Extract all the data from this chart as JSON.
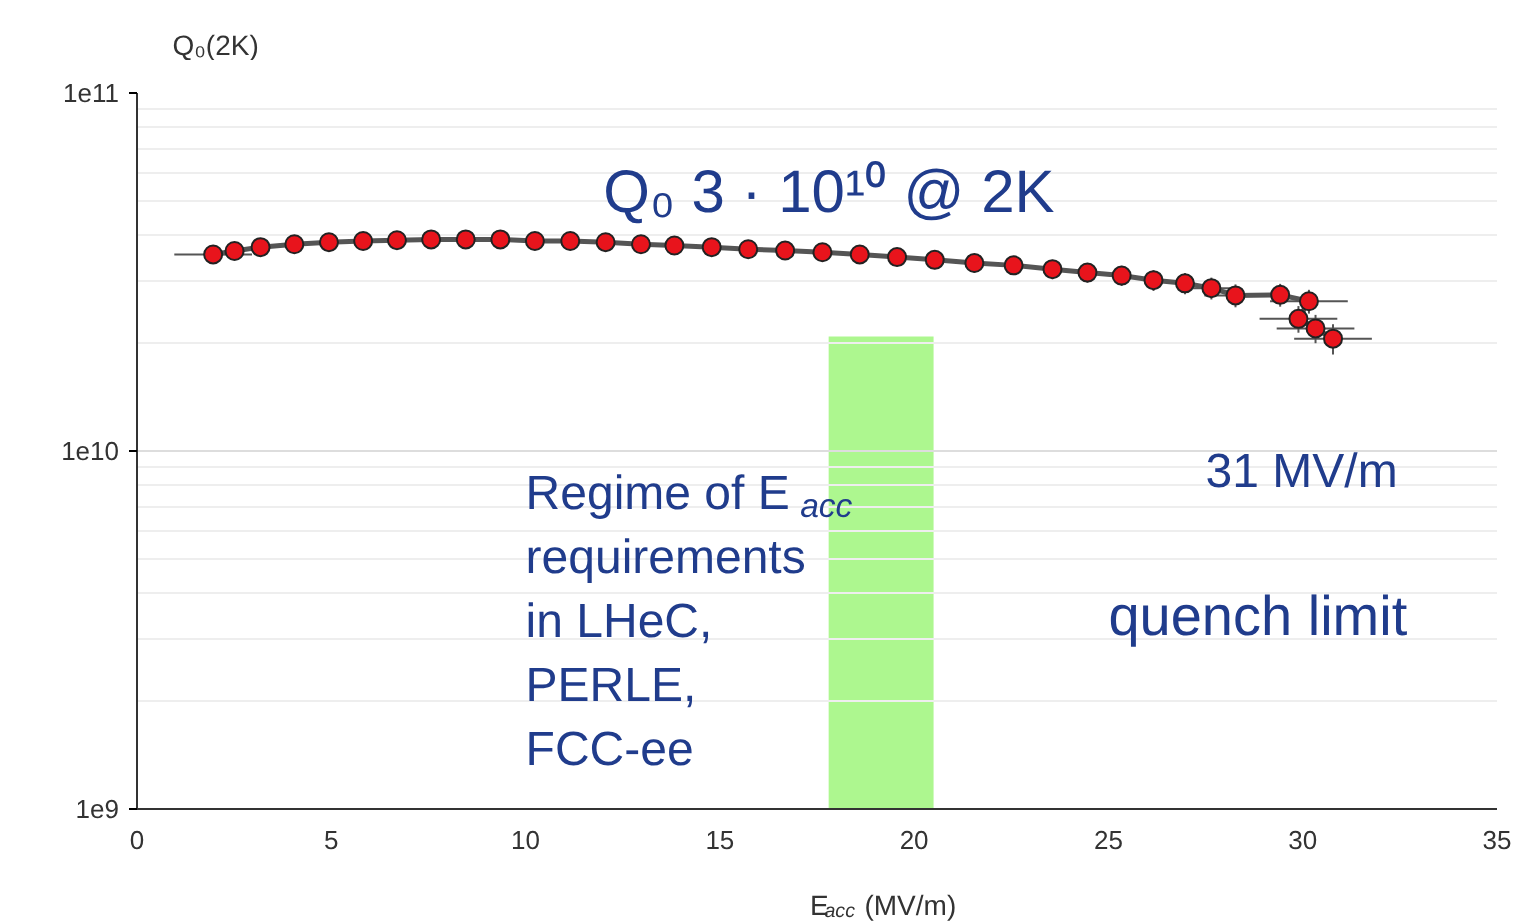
{
  "chart_data": {
    "type": "line",
    "marker": "circle",
    "grid": "y",
    "log": "y",
    "xlabel": "E$_{acc}$ (MV/m)",
    "ylabel": "Q₀(2K)",
    "x": [
      1.96,
      2.51,
      3.18,
      4.05,
      4.94,
      5.82,
      6.69,
      7.57,
      8.46,
      9.35,
      10.24,
      11.15,
      12.06,
      12.97,
      13.83,
      14.79,
      15.73,
      16.68,
      17.64,
      18.6,
      19.56,
      20.53,
      21.55,
      22.56,
      23.56,
      24.46,
      25.34,
      26.16,
      26.97,
      27.65,
      28.27,
      29.42,
      30.16,
      29.89,
      30.33,
      30.78
    ],
    "series": [
      {
        "color": "#e8141c",
        "values": [
          35400000000.0,
          36200000000.0,
          37100000000.0,
          37800000000.0,
          38300000000.0,
          38600000000.0,
          38800000000.0,
          39000000000.0,
          39000000000.0,
          39000000000.0,
          38600000000.0,
          38600000000.0,
          38300000000.0,
          37800000000.0,
          37500000000.0,
          37100000000.0,
          36600000000.0,
          36300000000.0,
          35900000000.0,
          35400000000.0,
          34800000000.0,
          34200000000.0,
          33500000000.0,
          33000000000.0,
          32200000000.0,
          31500000000.0,
          30900000000.0,
          30000000000.0,
          29400000000.0,
          28500000000.0,
          27200000000.0,
          27300000000.0,
          26200000000.0,
          23400000000.0,
          22000000000.0,
          20600000000.0
        ],
        "errors": [
          2000000000.0,
          2000000000.0,
          2000000000.0,
          2000000000.0,
          2000000000.0,
          2000000000.0,
          2000000000.0,
          2000000000.0,
          2000000000.0,
          2000000000.0,
          2000000000.0,
          2000000000.0,
          2000000000.0,
          2000000000.0,
          2000000000.0,
          2000000000.0,
          2000000000.0,
          2000000000.0,
          2000000000.0,
          2000000000.0,
          2000000000.0,
          2000000000.0,
          2000000000.0,
          2000000000.0,
          2000000000.0,
          2000000000.0,
          2000000000.0,
          2000000000.0,
          2000000000.0,
          2000000000.0,
          2000000000.0,
          2000000000.0,
          2000000000.0,
          2000000000.0,
          2000000000.0,
          2000000000.0
        ],
        "xerrors": [
          1.0,
          null,
          null,
          null,
          null,
          null,
          null,
          null,
          null,
          null,
          null,
          null,
          null,
          null,
          null,
          null,
          null,
          null,
          null,
          null,
          null,
          null,
          null,
          null,
          null,
          null,
          null,
          null,
          null,
          0.7,
          0.8,
          null,
          1.0,
          1.0,
          1.0,
          1.0
        ]
      }
    ],
    "xlim": [
      0,
      35
    ],
    "xticks": [
      0,
      5,
      10,
      15,
      20,
      25,
      30,
      35
    ],
    "ylim": [
      1000000000.0,
      100000000000.0
    ],
    "yticks": [
      {
        "value": 1000000000.0,
        "label": "1e9"
      },
      {
        "value": 10000000000.0,
        "label": "1e10"
      },
      {
        "value": 100000000000.0,
        "label": "1e11"
      }
    ],
    "bands": [
      {
        "axis": "x",
        "from": 17.8,
        "to": 20.5,
        "color": "#adf78f",
        "label": "Regime of E$_{acc}$\nrequirements\nin LHeC,\nPERLE,\nFCC-ee"
      }
    ],
    "annotations": [
      "Q₀ 3 · 10¹⁰ @ 2K",
      "31 MV/m",
      "quench limit"
    ]
  }
}
